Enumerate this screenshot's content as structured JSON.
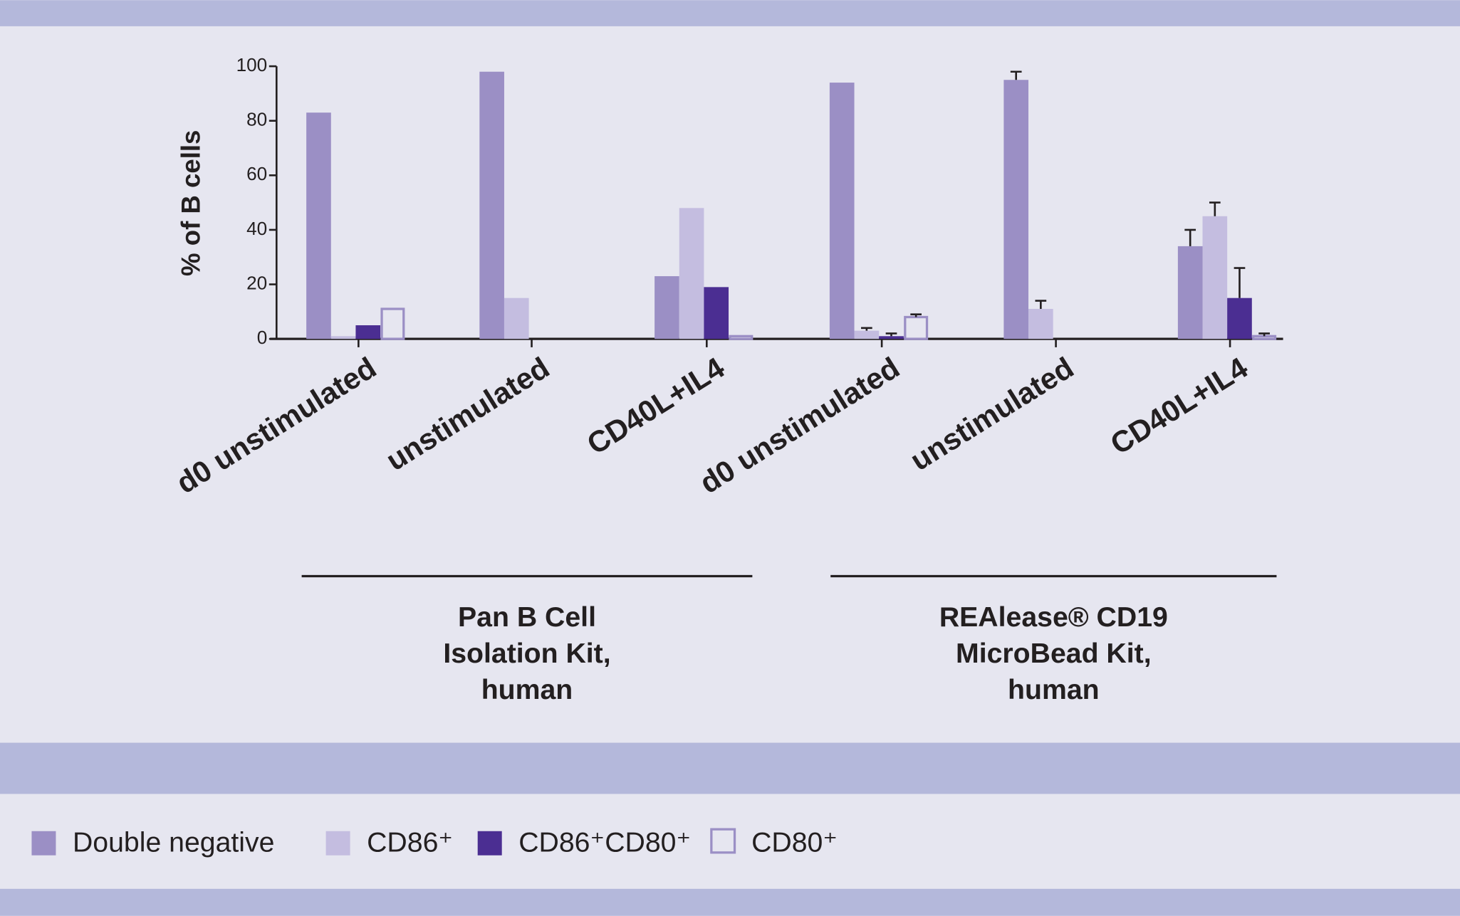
{
  "chart_data": {
    "type": "bar",
    "y_label": "% of B cells",
    "categories": [
      "d0 unstimulated",
      "unstimulated",
      "CD40L+IL4",
      "d0 unstimulated",
      "unstimulated",
      "CD40L+IL4"
    ],
    "series": [
      {
        "name": "Double negative",
        "color": "#9b8fc5",
        "values": [
          83,
          98,
          23,
          94,
          95,
          34
        ],
        "errors": [
          null,
          null,
          null,
          null,
          3,
          6
        ]
      },
      {
        "name": "CD86⁺",
        "color": "#c4bde0",
        "values": [
          1,
          15,
          48,
          3,
          11,
          45
        ],
        "errors": [
          null,
          null,
          null,
          1,
          3,
          5
        ]
      },
      {
        "name": "CD86⁺CD80⁺",
        "color": "#4b2e92",
        "values": [
          5,
          0,
          19,
          1,
          0,
          15
        ],
        "errors": [
          null,
          null,
          null,
          1,
          null,
          11
        ]
      },
      {
        "name": "CD80⁺",
        "color": "#9b8fc5",
        "outline": true,
        "values": [
          11,
          0,
          1,
          8,
          0,
          1
        ],
        "errors": [
          null,
          null,
          null,
          1,
          null,
          1
        ]
      }
    ],
    "ylim": [
      0,
      100
    ],
    "yticks": [
      0,
      20,
      40,
      60,
      80,
      100
    ],
    "groups": [
      [
        "Pan B Cell",
        "Isolation Kit,",
        "human"
      ],
      [
        "REAlease® CD19",
        "MicroBead Kit,",
        "human"
      ]
    ]
  }
}
